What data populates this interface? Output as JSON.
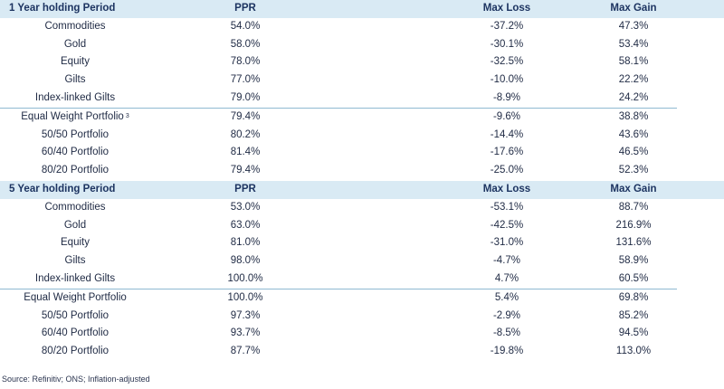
{
  "sections": [
    {
      "header": {
        "name": "1 Year holding Period",
        "ppr": "PPR",
        "loss": "Max Loss",
        "gain": "Max Gain"
      },
      "assets": [
        {
          "name": "Commodities",
          "ppr": "54.0%",
          "loss": "-37.2%",
          "gain": "47.3%"
        },
        {
          "name": "Gold",
          "ppr": "58.0%",
          "loss": "-30.1%",
          "gain": "53.4%"
        },
        {
          "name": "Equity",
          "ppr": "78.0%",
          "loss": "-32.5%",
          "gain": "58.1%"
        },
        {
          "name": "Gilts",
          "ppr": "77.0%",
          "loss": "-10.0%",
          "gain": "22.2%"
        },
        {
          "name": "Index-linked Gilts",
          "ppr": "79.0%",
          "loss": "-8.9%",
          "gain": "24.2%"
        }
      ],
      "portfolios": [
        {
          "name": "Equal Weight Portfolio",
          "sup": "3",
          "ppr": "79.4%",
          "loss": "-9.6%",
          "gain": "38.8%"
        },
        {
          "name": "50/50 Portfolio",
          "ppr": "80.2%",
          "loss": "-14.4%",
          "gain": "43.6%"
        },
        {
          "name": "60/40 Portfolio",
          "ppr": "81.4%",
          "loss": "-17.6%",
          "gain": "46.5%"
        },
        {
          "name": "80/20 Portfolio",
          "ppr": "79.4%",
          "loss": "-25.0%",
          "gain": "52.3%"
        }
      ]
    },
    {
      "header": {
        "name": "5 Year holding Period",
        "ppr": "PPR",
        "loss": "Max Loss",
        "gain": "Max Gain"
      },
      "assets": [
        {
          "name": "Commodities",
          "ppr": "53.0%",
          "loss": "-53.1%",
          "gain": "88.7%"
        },
        {
          "name": "Gold",
          "ppr": "63.0%",
          "loss": "-42.5%",
          "gain": "216.9%"
        },
        {
          "name": "Equity",
          "ppr": "81.0%",
          "loss": "-31.0%",
          "gain": "131.6%"
        },
        {
          "name": "Gilts",
          "ppr": "98.0%",
          "loss": "-4.7%",
          "gain": "58.9%"
        },
        {
          "name": "Index-linked Gilts",
          "ppr": "100.0%",
          "loss": "4.7%",
          "gain": "60.5%"
        }
      ],
      "portfolios": [
        {
          "name": "Equal Weight Portfolio",
          "ppr": "100.0%",
          "loss": "5.4%",
          "gain": "69.8%"
        },
        {
          "name": "50/50 Portfolio",
          "ppr": "97.3%",
          "loss": "-2.9%",
          "gain": "85.2%"
        },
        {
          "name": "60/40 Portfolio",
          "ppr": "93.7%",
          "loss": "-8.5%",
          "gain": "94.5%"
        },
        {
          "name": "80/20 Portfolio",
          "ppr": "87.7%",
          "loss": "-19.8%",
          "gain": "113.0%"
        }
      ]
    }
  ],
  "source": "Source: Refinitiv; ONS; Inflation-adjusted"
}
